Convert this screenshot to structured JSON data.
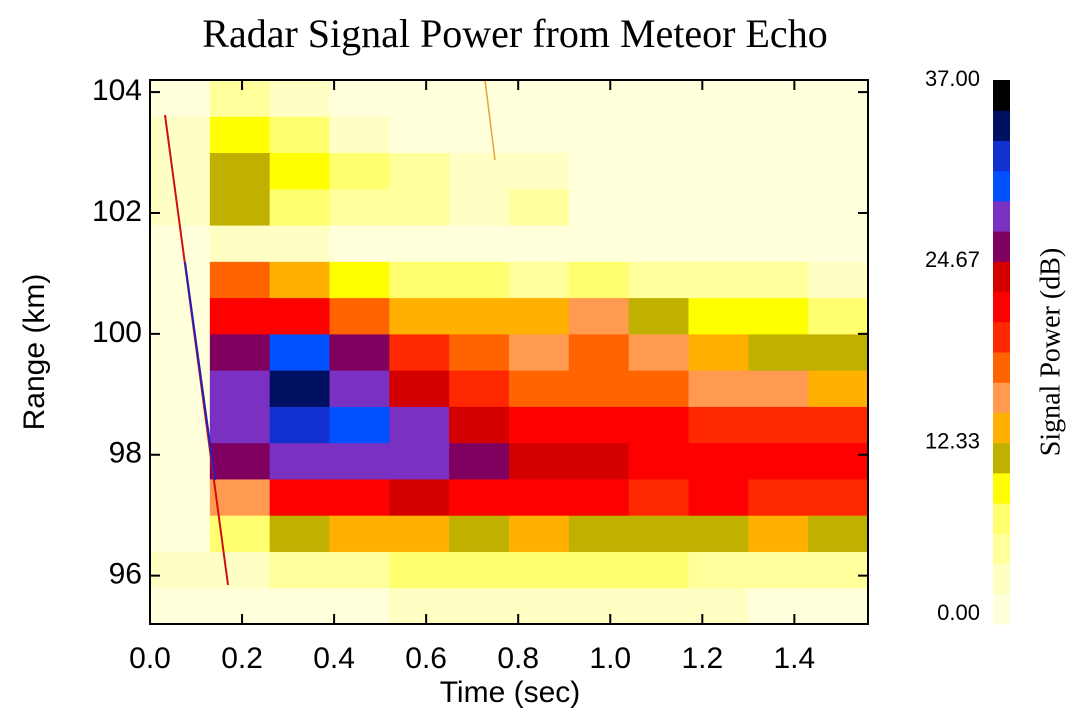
{
  "chart_data": {
    "type": "heatmap",
    "title": "Radar Signal Power from Meteor Echo",
    "x_label": "Time (sec)",
    "y_label": "Range (km)",
    "colorbar_label": "Signal Power (dB)",
    "x": [
      0,
      0.13,
      0.26,
      0.39,
      0.52,
      0.65,
      0.78,
      0.91,
      1.04,
      1.17,
      1.3,
      1.43,
      1.56
    ],
    "y": [
      95.2,
      95.8,
      96.4,
      97.0,
      97.6,
      98.2,
      98.8,
      99.4,
      100.0,
      100.6,
      101.2,
      101.8,
      102.4,
      103.0,
      103.6,
      104.2
    ],
    "z": [
      [
        2,
        2,
        2,
        2,
        3,
        3,
        3,
        3,
        3,
        3,
        2,
        2
      ],
      [
        4,
        3,
        6,
        6,
        8,
        7,
        8,
        7,
        7,
        6,
        6,
        6
      ],
      [
        2,
        8,
        12,
        14,
        14,
        12,
        14,
        12,
        12,
        12,
        14,
        12
      ],
      [
        2,
        16,
        22,
        22,
        24,
        22,
        22,
        22,
        20,
        22,
        20,
        20
      ],
      [
        2,
        25,
        28,
        28,
        28,
        26,
        24,
        24,
        22,
        22,
        22,
        22
      ],
      [
        2,
        27,
        32,
        30,
        28,
        24,
        22,
        22,
        21,
        20,
        20,
        19
      ],
      [
        2,
        28,
        33,
        27,
        24,
        20,
        18,
        18,
        17,
        16,
        15,
        14
      ],
      [
        2,
        26,
        30,
        26,
        20,
        18,
        16,
        17,
        16,
        14,
        12,
        11
      ],
      [
        2,
        22,
        22,
        18,
        14,
        14,
        14,
        16,
        12,
        10,
        9,
        8
      ],
      [
        2,
        18,
        14,
        10,
        8,
        8,
        6,
        7,
        6,
        5,
        5,
        4
      ],
      [
        2,
        3,
        3,
        2,
        2,
        2,
        2,
        1,
        1,
        1,
        1,
        1
      ],
      [
        3,
        12,
        8,
        5,
        5,
        4,
        5,
        2,
        1,
        1,
        1,
        1
      ],
      [
        4,
        12,
        10,
        7,
        5,
        4,
        3,
        1,
        1,
        1,
        1,
        1
      ],
      [
        3,
        10,
        8,
        4,
        2,
        2,
        1,
        1,
        1,
        1,
        1,
        1
      ],
      [
        2,
        6,
        3,
        1,
        1,
        1,
        1,
        1,
        1,
        1,
        1,
        1
      ]
    ],
    "xlim": [
      0,
      1.56
    ],
    "ylim": [
      95.2,
      104.2
    ],
    "xticks": [
      {
        "value": 0,
        "label": "0.0"
      },
      0.2,
      0.4,
      0.6,
      0.8,
      {
        "value": 1,
        "label": "1.0"
      },
      1.2,
      1.4
    ],
    "yticks": [
      96,
      98,
      100,
      102,
      104
    ],
    "zlim": [
      0,
      37
    ],
    "colorbar_ticks": [
      {
        "value": 0,
        "label": "0.00"
      },
      12.33,
      24.67,
      {
        "value": 37,
        "label": "37.00"
      }
    ],
    "colors": [
      "#ffffdc",
      "#ffffc4",
      "#ffff9c",
      "#ffff70",
      "#ffff00",
      "#c0b000",
      "#ffb000",
      "#ff9a50",
      "#ff6400",
      "#ff2800",
      "#ff0000",
      "#d40000",
      "#800060",
      "#7a30c0",
      "#0050ff",
      "#1030d0",
      "#001060",
      "#000000"
    ]
  }
}
